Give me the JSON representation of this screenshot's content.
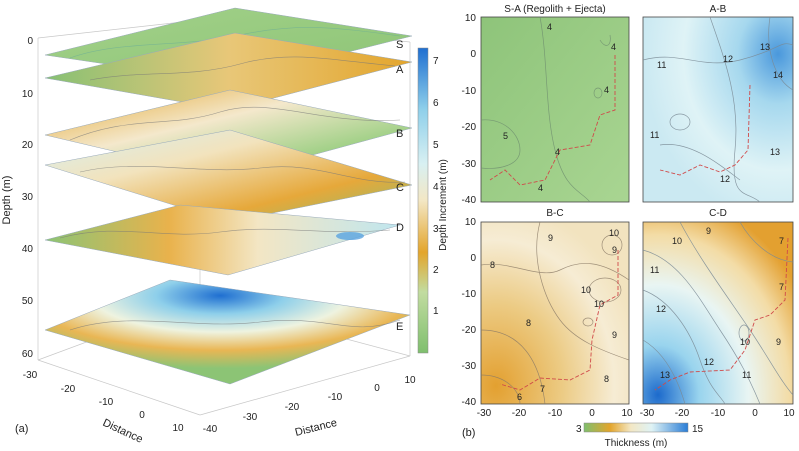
{
  "chart_data": [
    {
      "type": "surface-3d-stack",
      "panel_label": "(a)",
      "title": "",
      "ylabel": "Depth (m)",
      "xlabel": "Distance",
      "zlabel": "Distance",
      "depth_ticks": [
        "0",
        "10",
        "20",
        "30",
        "40",
        "50",
        "60"
      ],
      "distance_ticks_left": [
        "-30",
        "-20",
        "-10",
        "0",
        "10"
      ],
      "distance_ticks_right": [
        "-40",
        "-30",
        "-20",
        "-10",
        "0",
        "10"
      ],
      "layers": [
        {
          "name": "S",
          "depth": 0
        },
        {
          "name": "A",
          "depth": 4
        },
        {
          "name": "B",
          "depth": 16
        },
        {
          "name": "C",
          "depth": 27
        },
        {
          "name": "D",
          "depth": 37
        },
        {
          "name": "E",
          "depth": 53
        }
      ],
      "colorbar": {
        "label": "Depth Increment (m)",
        "min": 0,
        "max": 7,
        "ticks": [
          "1",
          "2",
          "3",
          "4",
          "5",
          "6",
          "7"
        ]
      }
    },
    {
      "type": "contour-grid",
      "panel_label": "(b)",
      "x_ticks": [
        "-30",
        "-20",
        "-10",
        "0",
        "10"
      ],
      "x_ticks_right": [
        "-30",
        "-20",
        "-10",
        "0",
        "10"
      ],
      "y_ticks": [
        "10",
        "0",
        "-10",
        "-20",
        "-30",
        "-40"
      ],
      "xlim": [
        -30,
        10
      ],
      "ylim": [
        -40,
        10
      ],
      "panels": [
        {
          "title": "S-A (Regolith + Ejecta)",
          "contour_labels": [
            "4",
            "4",
            "4",
            "5",
            "4",
            "4"
          ]
        },
        {
          "title": "A-B",
          "contour_labels": [
            "11",
            "12",
            "13",
            "14",
            "11",
            "13",
            "12"
          ]
        },
        {
          "title": "B-C",
          "contour_labels": [
            "9",
            "10",
            "9",
            "8",
            "10",
            "10",
            "9",
            "8",
            "7",
            "6",
            "8"
          ]
        },
        {
          "title": "C-D",
          "contour_labels": [
            "10",
            "9",
            "11",
            "12",
            "10",
            "7",
            "12",
            "11",
            "7",
            "9",
            "13"
          ]
        }
      ],
      "colorbar": {
        "label": "Thickness (m)",
        "min": 3,
        "max": 15,
        "ticks": [
          "3",
          "15"
        ]
      }
    }
  ]
}
